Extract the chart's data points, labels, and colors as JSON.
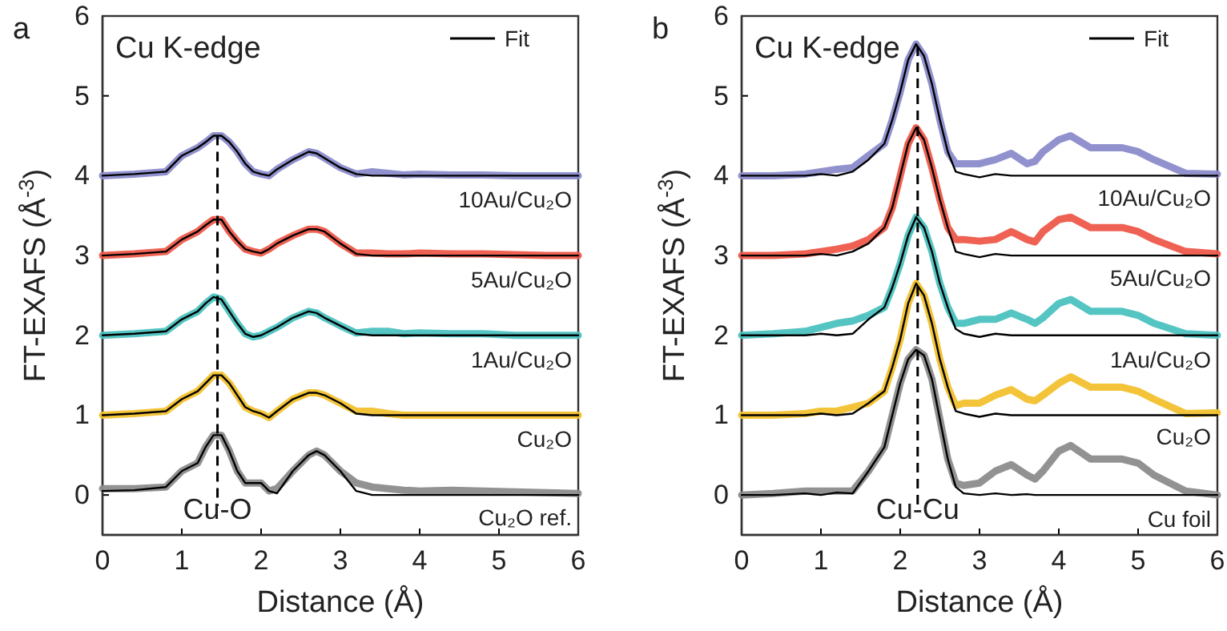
{
  "chart_data": [
    {
      "type": "line",
      "title": "a",
      "xlabel": "Distance (Å)",
      "ylabel": "FT-EXAFS (Å$^{-3}$)",
      "xlim": [
        0,
        6
      ],
      "ylim": [
        -0.5,
        6
      ],
      "xticks": [
        0,
        1,
        2,
        3,
        4,
        5,
        6
      ],
      "yticks": [
        0,
        1,
        2,
        3,
        4,
        5,
        6
      ],
      "legend": "top right",
      "grid": false,
      "x": [
        0,
        0.4,
        0.8,
        1.0,
        1.2,
        1.3,
        1.4,
        1.5,
        1.6,
        1.7,
        1.8,
        1.9,
        2.0,
        2.1,
        2.2,
        2.4,
        2.6,
        2.7,
        2.8,
        3.0,
        3.2,
        3.4,
        3.6,
        3.8,
        4.0,
        4.4,
        4.8,
        5.2,
        5.6,
        6.0
      ],
      "series": [
        {
          "color": "#8c8c8c",
          "values": [
            0.08,
            0.08,
            0.1,
            0.3,
            0.4,
            0.6,
            0.75,
            0.75,
            0.55,
            0.3,
            0.15,
            0.15,
            0.15,
            0.05,
            0.08,
            0.3,
            0.5,
            0.55,
            0.5,
            0.3,
            0.15,
            0.1,
            0.08,
            0.06,
            0.05,
            0.06,
            0.05,
            0.04,
            0.03,
            0.02
          ]
        },
        {
          "color": "#f2c12e",
          "values": [
            1.0,
            1.02,
            1.05,
            1.2,
            1.3,
            1.4,
            1.5,
            1.5,
            1.4,
            1.25,
            1.1,
            1.05,
            1.02,
            0.97,
            1.05,
            1.2,
            1.28,
            1.28,
            1.25,
            1.15,
            1.05,
            1.05,
            1.02,
            1.0,
            1.0,
            1.0,
            1.0,
            1.0,
            1.0,
            1.0
          ]
        },
        {
          "color": "#4cc2c0",
          "values": [
            2.0,
            2.02,
            2.05,
            2.2,
            2.3,
            2.4,
            2.48,
            2.45,
            2.3,
            2.15,
            2.02,
            1.98,
            2.0,
            2.05,
            2.1,
            2.22,
            2.3,
            2.28,
            2.22,
            2.12,
            2.03,
            2.05,
            2.05,
            2.02,
            2.03,
            2.02,
            2.02,
            2.0,
            2.0,
            2.0
          ]
        },
        {
          "color": "#ee5a4a",
          "values": [
            3.0,
            3.02,
            3.05,
            3.2,
            3.3,
            3.38,
            3.45,
            3.45,
            3.3,
            3.18,
            3.08,
            3.05,
            3.03,
            3.08,
            3.15,
            3.25,
            3.33,
            3.33,
            3.3,
            3.15,
            3.03,
            3.03,
            3.02,
            3.02,
            3.03,
            3.02,
            3.02,
            3.01,
            3.0,
            3.0
          ]
        },
        {
          "color": "#8b8bcb",
          "values": [
            4.0,
            4.02,
            4.05,
            4.25,
            4.35,
            4.42,
            4.5,
            4.5,
            4.42,
            4.3,
            4.15,
            4.05,
            4.02,
            4.0,
            4.08,
            4.2,
            4.3,
            4.28,
            4.22,
            4.1,
            4.02,
            4.05,
            4.03,
            4.01,
            4.02,
            4.01,
            4.01,
            4.0,
            4.0,
            4.0
          ]
        },
        {
          "name": "Fit",
          "color": "#000000",
          "values": [
            0.05,
            0.06,
            0.1,
            0.3,
            0.4,
            0.6,
            0.75,
            0.75,
            0.55,
            0.3,
            0.15,
            0.15,
            0.15,
            0.05,
            0.02,
            0.3,
            0.5,
            0.55,
            0.5,
            0.3,
            0.05,
            0.0,
            0.0,
            0.0,
            0.0,
            0.0,
            0.0,
            0.0,
            0.0,
            0.0
          ]
        },
        {
          "color": "#000000",
          "values": [
            1.0,
            1.02,
            1.05,
            1.2,
            1.3,
            1.4,
            1.5,
            1.5,
            1.4,
            1.25,
            1.1,
            1.05,
            1.02,
            0.97,
            1.05,
            1.2,
            1.28,
            1.28,
            1.25,
            1.15,
            1.02,
            1.0,
            1.0,
            1.0,
            1.0,
            1.0,
            1.0,
            1.0,
            1.0,
            1.0
          ]
        },
        {
          "color": "#000000",
          "values": [
            2.0,
            2.02,
            2.05,
            2.2,
            2.3,
            2.4,
            2.48,
            2.45,
            2.3,
            2.15,
            2.02,
            1.98,
            2.0,
            2.05,
            2.1,
            2.22,
            2.3,
            2.28,
            2.22,
            2.12,
            2.02,
            2.0,
            2.0,
            2.0,
            2.0,
            2.0,
            2.0,
            2.0,
            2.0,
            2.0
          ]
        },
        {
          "color": "#000000",
          "values": [
            3.0,
            3.02,
            3.05,
            3.2,
            3.3,
            3.38,
            3.45,
            3.45,
            3.3,
            3.18,
            3.08,
            3.05,
            3.03,
            3.08,
            3.15,
            3.25,
            3.33,
            3.33,
            3.3,
            3.15,
            3.02,
            3.0,
            3.0,
            3.0,
            3.0,
            3.0,
            3.0,
            3.0,
            3.0,
            3.0
          ]
        },
        {
          "color": "#000000",
          "values": [
            4.0,
            4.02,
            4.05,
            4.25,
            4.35,
            4.42,
            4.5,
            4.5,
            4.42,
            4.3,
            4.15,
            4.05,
            4.02,
            4.0,
            4.08,
            4.2,
            4.3,
            4.28,
            4.22,
            4.1,
            4.02,
            4.0,
            4.0,
            4.0,
            4.0,
            4.0,
            4.0,
            4.0,
            4.0,
            4.0
          ]
        }
      ],
      "ref_lines": [
        {
          "axis": "x",
          "value": 1.45,
          "color": "#000000",
          "line_style": "dashed"
        }
      ],
      "annotations": [
        "Cu K-edge",
        "10Au/Cu₂O",
        "5Au/Cu₂O",
        "1Au/Cu₂O",
        "Cu₂O",
        "Cu₂O ref.",
        "Cu-O"
      ]
    },
    {
      "type": "line",
      "title": "b",
      "xlabel": "Distance (Å)",
      "ylabel": "FT-EXAFS (Å$^{-3}$)",
      "xlim": [
        0,
        6
      ],
      "ylim": [
        -0.5,
        6
      ],
      "xticks": [
        0,
        1,
        2,
        3,
        4,
        5,
        6
      ],
      "yticks": [
        0,
        1,
        2,
        3,
        4,
        5,
        6
      ],
      "legend": "top right",
      "grid": false,
      "x": [
        0,
        0.4,
        0.8,
        1.0,
        1.2,
        1.4,
        1.6,
        1.8,
        1.9,
        2.0,
        2.1,
        2.2,
        2.3,
        2.4,
        2.5,
        2.6,
        2.7,
        2.8,
        3.0,
        3.2,
        3.4,
        3.6,
        3.7,
        3.8,
        4.0,
        4.15,
        4.4,
        4.8,
        5.0,
        5.2,
        5.6,
        6.0
      ],
      "series": [
        {
          "color": "#8c8c8c",
          "values": [
            0.0,
            0.02,
            0.05,
            0.05,
            0.05,
            0.05,
            0.3,
            0.6,
            1.0,
            1.4,
            1.7,
            1.82,
            1.75,
            1.45,
            0.95,
            0.45,
            0.15,
            0.12,
            0.15,
            0.3,
            0.38,
            0.25,
            0.2,
            0.3,
            0.55,
            0.62,
            0.45,
            0.45,
            0.4,
            0.25,
            0.05,
            0.0
          ]
        },
        {
          "color": "#f2c12e",
          "values": [
            1.0,
            1.0,
            1.02,
            1.05,
            1.05,
            1.1,
            1.15,
            1.3,
            1.6,
            1.95,
            2.4,
            2.65,
            2.5,
            2.15,
            1.7,
            1.35,
            1.12,
            1.15,
            1.15,
            1.25,
            1.32,
            1.2,
            1.18,
            1.25,
            1.4,
            1.48,
            1.35,
            1.35,
            1.3,
            1.2,
            1.02,
            1.03
          ]
        },
        {
          "color": "#4cc2c0",
          "values": [
            2.0,
            2.02,
            2.05,
            2.1,
            2.15,
            2.18,
            2.25,
            2.35,
            2.6,
            2.9,
            3.25,
            3.48,
            3.35,
            3.05,
            2.65,
            2.35,
            2.15,
            2.15,
            2.2,
            2.2,
            2.28,
            2.2,
            2.15,
            2.22,
            2.4,
            2.45,
            2.3,
            2.3,
            2.25,
            2.15,
            2.02,
            2.0
          ]
        },
        {
          "color": "#ee5a4a",
          "values": [
            3.0,
            3.0,
            3.02,
            3.05,
            3.08,
            3.12,
            3.2,
            3.35,
            3.6,
            4.0,
            4.4,
            4.6,
            4.45,
            4.1,
            3.7,
            3.35,
            3.2,
            3.2,
            3.18,
            3.2,
            3.3,
            3.2,
            3.17,
            3.3,
            3.45,
            3.48,
            3.35,
            3.35,
            3.3,
            3.2,
            3.05,
            3.02
          ]
        },
        {
          "color": "#8b8bcb",
          "values": [
            4.0,
            4.0,
            4.02,
            4.05,
            4.08,
            4.1,
            4.25,
            4.4,
            4.7,
            5.05,
            5.45,
            5.65,
            5.5,
            5.15,
            4.7,
            4.3,
            4.15,
            4.15,
            4.15,
            4.2,
            4.28,
            4.15,
            4.18,
            4.3,
            4.45,
            4.5,
            4.35,
            4.35,
            4.3,
            4.2,
            4.03,
            4.02
          ]
        },
        {
          "name": "Fit",
          "color": "#000000",
          "values": [
            0.0,
            0.0,
            0.02,
            0.0,
            0.03,
            0.02,
            0.3,
            0.6,
            1.0,
            1.4,
            1.7,
            1.82,
            1.75,
            1.45,
            0.95,
            0.45,
            0.1,
            0.02,
            0.0,
            0.02,
            0.0,
            0.01,
            0.0,
            0.0,
            0.0,
            0.0,
            0.0,
            0.0,
            0.0,
            0.0,
            0.0,
            0.0
          ]
        },
        {
          "color": "#000000",
          "values": [
            1.0,
            1.0,
            1.0,
            1.02,
            1.0,
            1.02,
            1.15,
            1.3,
            1.6,
            1.95,
            2.4,
            2.65,
            2.5,
            2.15,
            1.7,
            1.35,
            1.05,
            1.02,
            0.98,
            1.02,
            1.0,
            1.0,
            1.0,
            1.0,
            1.0,
            1.0,
            1.0,
            1.0,
            1.0,
            1.0,
            1.0,
            1.0
          ]
        },
        {
          "color": "#000000",
          "values": [
            2.0,
            2.0,
            2.0,
            2.02,
            2.0,
            2.02,
            2.2,
            2.35,
            2.6,
            2.9,
            3.25,
            3.48,
            3.35,
            3.05,
            2.65,
            2.35,
            2.08,
            2.02,
            1.98,
            2.02,
            2.0,
            2.0,
            2.0,
            2.0,
            2.0,
            2.0,
            2.0,
            2.0,
            2.0,
            2.0,
            2.0,
            2.0
          ]
        },
        {
          "color": "#000000",
          "values": [
            3.0,
            3.0,
            3.0,
            3.02,
            3.0,
            3.05,
            3.15,
            3.35,
            3.6,
            4.0,
            4.4,
            4.6,
            4.45,
            4.1,
            3.7,
            3.35,
            3.05,
            3.02,
            2.98,
            3.02,
            3.0,
            3.0,
            3.0,
            3.0,
            3.0,
            3.0,
            3.0,
            3.0,
            3.0,
            3.0,
            3.0,
            3.0
          ]
        },
        {
          "color": "#000000",
          "values": [
            4.0,
            4.0,
            4.0,
            4.02,
            4.0,
            4.05,
            4.2,
            4.4,
            4.7,
            5.05,
            5.45,
            5.65,
            5.5,
            5.15,
            4.7,
            4.3,
            4.05,
            4.02,
            3.98,
            4.02,
            4.0,
            4.0,
            4.0,
            4.0,
            4.0,
            4.0,
            4.0,
            4.0,
            4.0,
            4.0,
            4.0,
            4.0
          ]
        }
      ],
      "ref_lines": [
        {
          "axis": "x",
          "value": 2.22,
          "color": "#000000",
          "line_style": "dashed"
        }
      ],
      "annotations": [
        "Cu K-edge",
        "10Au/Cu₂O",
        "5Au/Cu₂O",
        "1Au/Cu₂O",
        "Cu₂O",
        "Cu foil",
        "Cu-Cu"
      ]
    }
  ]
}
